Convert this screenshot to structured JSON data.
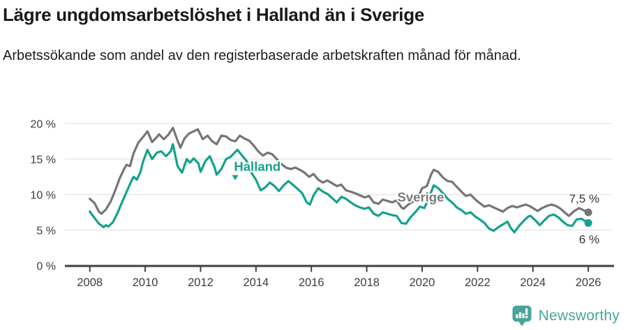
{
  "header": {
    "title": "Lägre ungdomsarbetslöshet i Halland än i Sverige",
    "subtitle": "Arbetssökande som andel av den registerbaserade arbetskraften månad för månad."
  },
  "footer": {
    "brand": "Newsworthy",
    "brand_color": "#48a59b",
    "logo_icon": "bar-chart-speech-bubble-icon"
  },
  "chart_data": {
    "type": "line",
    "title": "Lägre ungdomsarbetslöshet i Halland än i Sverige",
    "subtitle": "Arbetssökande som andel av den registerbaserade arbetskraften månad för månad.",
    "grid": true,
    "colors": {
      "halland": "#13a28c",
      "sverige": "#757575",
      "gridline": "#e3e3e3",
      "axis": "#3f3f3f",
      "tick_text": "#3d3d3d",
      "end_label_text": "#333333"
    },
    "x_axis": {
      "range": [
        2007.1,
        2026.93
      ],
      "ticks": [
        2008,
        2010,
        2012,
        2014,
        2016,
        2018,
        2020,
        2022,
        2024,
        2026
      ],
      "tick_labels": [
        "2008",
        "2010",
        "2012",
        "2014",
        "2016",
        "2018",
        "2020",
        "2022",
        "2024",
        "2026"
      ]
    },
    "y_axis": {
      "range": [
        0,
        20
      ],
      "ticks": [
        0,
        5,
        10,
        15,
        20
      ],
      "tick_labels": [
        "0 %",
        "5 %",
        "10 %",
        "15 %",
        "20 %"
      ]
    },
    "labels": [
      {
        "text": "Halland",
        "x": 2014.05,
        "y": 13.95,
        "color": "#13a28c",
        "marker": {
          "shape": "triangle-down",
          "x": 2013.25,
          "y": 12.45
        }
      },
      {
        "text": "Sverige",
        "x": 2019.95,
        "y": 9.65,
        "color": "#7a7a7a"
      }
    ],
    "series": [
      {
        "name": "Sverige",
        "color": "#757575",
        "end_label": {
          "text": "7,5 %",
          "dx": 16,
          "dy": -14
        },
        "points": [
          [
            2008.0,
            9.4
          ],
          [
            2008.17,
            8.8
          ],
          [
            2008.33,
            7.6
          ],
          [
            2008.42,
            7.3
          ],
          [
            2008.58,
            7.9
          ],
          [
            2008.75,
            9.0
          ],
          [
            2008.92,
            10.6
          ],
          [
            2009.08,
            12.3
          ],
          [
            2009.25,
            13.7
          ],
          [
            2009.33,
            14.2
          ],
          [
            2009.45,
            14.0
          ],
          [
            2009.58,
            15.8
          ],
          [
            2009.75,
            17.3
          ],
          [
            2009.92,
            18.1
          ],
          [
            2010.08,
            18.9
          ],
          [
            2010.25,
            17.4
          ],
          [
            2010.42,
            18.1
          ],
          [
            2010.5,
            18.5
          ],
          [
            2010.67,
            17.8
          ],
          [
            2010.83,
            18.4
          ],
          [
            2011.0,
            19.4
          ],
          [
            2011.17,
            17.6
          ],
          [
            2011.27,
            16.6
          ],
          [
            2011.42,
            17.9
          ],
          [
            2011.58,
            18.6
          ],
          [
            2011.75,
            18.9
          ],
          [
            2011.9,
            19.2
          ],
          [
            2012.08,
            17.8
          ],
          [
            2012.25,
            18.3
          ],
          [
            2012.42,
            17.5
          ],
          [
            2012.58,
            17.1
          ],
          [
            2012.75,
            18.3
          ],
          [
            2012.92,
            18.2
          ],
          [
            2013.08,
            17.7
          ],
          [
            2013.25,
            17.5
          ],
          [
            2013.42,
            18.3
          ],
          [
            2013.58,
            17.9
          ],
          [
            2013.75,
            17.6
          ],
          [
            2013.92,
            16.9
          ],
          [
            2014.08,
            16.1
          ],
          [
            2014.25,
            15.5
          ],
          [
            2014.42,
            15.9
          ],
          [
            2014.58,
            15.7
          ],
          [
            2014.75,
            15.0
          ],
          [
            2014.92,
            14.3
          ],
          [
            2015.08,
            13.8
          ],
          [
            2015.25,
            13.6
          ],
          [
            2015.42,
            13.8
          ],
          [
            2015.58,
            13.5
          ],
          [
            2015.75,
            13.1
          ],
          [
            2015.92,
            12.5
          ],
          [
            2016.08,
            12.9
          ],
          [
            2016.25,
            12.1
          ],
          [
            2016.42,
            11.7
          ],
          [
            2016.58,
            12.0
          ],
          [
            2016.75,
            11.6
          ],
          [
            2016.92,
            11.2
          ],
          [
            2017.08,
            11.4
          ],
          [
            2017.25,
            10.6
          ],
          [
            2017.42,
            10.4
          ],
          [
            2017.58,
            10.2
          ],
          [
            2017.75,
            9.9
          ],
          [
            2017.92,
            9.6
          ],
          [
            2018.08,
            9.8
          ],
          [
            2018.25,
            8.9
          ],
          [
            2018.42,
            8.7
          ],
          [
            2018.58,
            9.3
          ],
          [
            2018.75,
            9.1
          ],
          [
            2018.92,
            8.9
          ],
          [
            2019.08,
            9.2
          ],
          [
            2019.25,
            8.2
          ],
          [
            2019.33,
            8.0
          ],
          [
            2019.5,
            8.6
          ],
          [
            2019.67,
            9.0
          ],
          [
            2019.83,
            9.4
          ],
          [
            2020.0,
            10.9
          ],
          [
            2020.17,
            11.2
          ],
          [
            2020.33,
            12.9
          ],
          [
            2020.42,
            13.5
          ],
          [
            2020.58,
            13.2
          ],
          [
            2020.75,
            12.4
          ],
          [
            2020.92,
            11.9
          ],
          [
            2021.08,
            11.8
          ],
          [
            2021.25,
            11.1
          ],
          [
            2021.42,
            10.4
          ],
          [
            2021.58,
            9.8
          ],
          [
            2021.75,
            10.0
          ],
          [
            2021.92,
            9.3
          ],
          [
            2022.08,
            8.8
          ],
          [
            2022.25,
            8.3
          ],
          [
            2022.42,
            8.5
          ],
          [
            2022.58,
            8.2
          ],
          [
            2022.75,
            7.9
          ],
          [
            2022.92,
            7.6
          ],
          [
            2023.08,
            8.1
          ],
          [
            2023.25,
            8.4
          ],
          [
            2023.42,
            8.2
          ],
          [
            2023.58,
            8.4
          ],
          [
            2023.75,
            8.6
          ],
          [
            2023.92,
            8.3
          ],
          [
            2024.08,
            7.9
          ],
          [
            2024.17,
            7.7
          ],
          [
            2024.33,
            8.1
          ],
          [
            2024.5,
            8.4
          ],
          [
            2024.67,
            8.6
          ],
          [
            2024.83,
            8.4
          ],
          [
            2025.0,
            8.0
          ],
          [
            2025.17,
            7.4
          ],
          [
            2025.3,
            7.0
          ],
          [
            2025.5,
            7.7
          ],
          [
            2025.67,
            8.1
          ],
          [
            2025.83,
            7.8
          ],
          [
            2026.0,
            7.5
          ]
        ]
      },
      {
        "name": "Halland",
        "color": "#13a28c",
        "end_label": {
          "text": "6 %",
          "dx": 16,
          "dy": 29
        },
        "points": [
          [
            2008.0,
            7.6
          ],
          [
            2008.17,
            6.7
          ],
          [
            2008.33,
            5.9
          ],
          [
            2008.5,
            5.4
          ],
          [
            2008.58,
            5.7
          ],
          [
            2008.67,
            5.5
          ],
          [
            2008.83,
            6.1
          ],
          [
            2009.0,
            7.4
          ],
          [
            2009.17,
            9.0
          ],
          [
            2009.33,
            10.4
          ],
          [
            2009.5,
            11.9
          ],
          [
            2009.58,
            12.5
          ],
          [
            2009.7,
            12.1
          ],
          [
            2009.83,
            13.2
          ],
          [
            2009.92,
            14.6
          ],
          [
            2010.08,
            16.3
          ],
          [
            2010.25,
            15.0
          ],
          [
            2010.42,
            15.9
          ],
          [
            2010.58,
            16.1
          ],
          [
            2010.75,
            15.4
          ],
          [
            2010.92,
            16.1
          ],
          [
            2011.0,
            17.1
          ],
          [
            2011.17,
            14.0
          ],
          [
            2011.33,
            13.1
          ],
          [
            2011.5,
            15.0
          ],
          [
            2011.62,
            14.5
          ],
          [
            2011.75,
            15.1
          ],
          [
            2011.92,
            14.4
          ],
          [
            2012.0,
            13.2
          ],
          [
            2012.17,
            14.7
          ],
          [
            2012.33,
            15.4
          ],
          [
            2012.5,
            13.9
          ],
          [
            2012.58,
            12.8
          ],
          [
            2012.75,
            13.6
          ],
          [
            2012.92,
            15.0
          ],
          [
            2013.08,
            15.3
          ],
          [
            2013.25,
            16.0
          ],
          [
            2013.33,
            16.3
          ],
          [
            2013.5,
            15.5
          ],
          [
            2013.67,
            14.7
          ],
          [
            2013.83,
            13.1
          ],
          [
            2014.0,
            12.1
          ],
          [
            2014.17,
            10.6
          ],
          [
            2014.33,
            11.0
          ],
          [
            2014.5,
            11.7
          ],
          [
            2014.67,
            11.2
          ],
          [
            2014.83,
            10.5
          ],
          [
            2015.0,
            11.3
          ],
          [
            2015.17,
            11.9
          ],
          [
            2015.33,
            11.4
          ],
          [
            2015.5,
            10.8
          ],
          [
            2015.67,
            10.2
          ],
          [
            2015.83,
            8.9
          ],
          [
            2015.95,
            8.6
          ],
          [
            2016.08,
            9.9
          ],
          [
            2016.25,
            10.9
          ],
          [
            2016.42,
            10.4
          ],
          [
            2016.58,
            10.1
          ],
          [
            2016.75,
            9.5
          ],
          [
            2016.92,
            8.9
          ],
          [
            2017.08,
            9.7
          ],
          [
            2017.25,
            9.4
          ],
          [
            2017.42,
            8.9
          ],
          [
            2017.58,
            8.5
          ],
          [
            2017.75,
            8.2
          ],
          [
            2017.92,
            8.0
          ],
          [
            2018.08,
            8.2
          ],
          [
            2018.25,
            7.3
          ],
          [
            2018.42,
            7.0
          ],
          [
            2018.58,
            7.5
          ],
          [
            2018.75,
            7.3
          ],
          [
            2018.92,
            7.1
          ],
          [
            2019.08,
            7.0
          ],
          [
            2019.25,
            6.0
          ],
          [
            2019.42,
            5.9
          ],
          [
            2019.58,
            6.8
          ],
          [
            2019.75,
            7.5
          ],
          [
            2019.92,
            8.3
          ],
          [
            2020.08,
            8.1
          ],
          [
            2020.25,
            9.6
          ],
          [
            2020.42,
            11.3
          ],
          [
            2020.58,
            10.9
          ],
          [
            2020.75,
            10.2
          ],
          [
            2020.92,
            9.4
          ],
          [
            2021.08,
            8.9
          ],
          [
            2021.25,
            8.2
          ],
          [
            2021.42,
            7.8
          ],
          [
            2021.58,
            7.3
          ],
          [
            2021.75,
            7.5
          ],
          [
            2021.92,
            6.9
          ],
          [
            2022.08,
            6.5
          ],
          [
            2022.25,
            6.0
          ],
          [
            2022.42,
            5.2
          ],
          [
            2022.58,
            4.9
          ],
          [
            2022.75,
            5.4
          ],
          [
            2022.92,
            5.8
          ],
          [
            2023.08,
            6.2
          ],
          [
            2023.2,
            5.3
          ],
          [
            2023.33,
            4.7
          ],
          [
            2023.5,
            5.6
          ],
          [
            2023.67,
            6.3
          ],
          [
            2023.83,
            6.9
          ],
          [
            2023.92,
            7.0
          ],
          [
            2024.08,
            6.4
          ],
          [
            2024.25,
            5.7
          ],
          [
            2024.42,
            6.4
          ],
          [
            2024.58,
            7.0
          ],
          [
            2024.75,
            7.2
          ],
          [
            2024.92,
            6.8
          ],
          [
            2025.08,
            6.2
          ],
          [
            2025.25,
            5.7
          ],
          [
            2025.42,
            5.6
          ],
          [
            2025.58,
            6.5
          ],
          [
            2025.75,
            6.6
          ],
          [
            2025.92,
            6.2
          ],
          [
            2026.0,
            6.0
          ]
        ]
      }
    ]
  }
}
